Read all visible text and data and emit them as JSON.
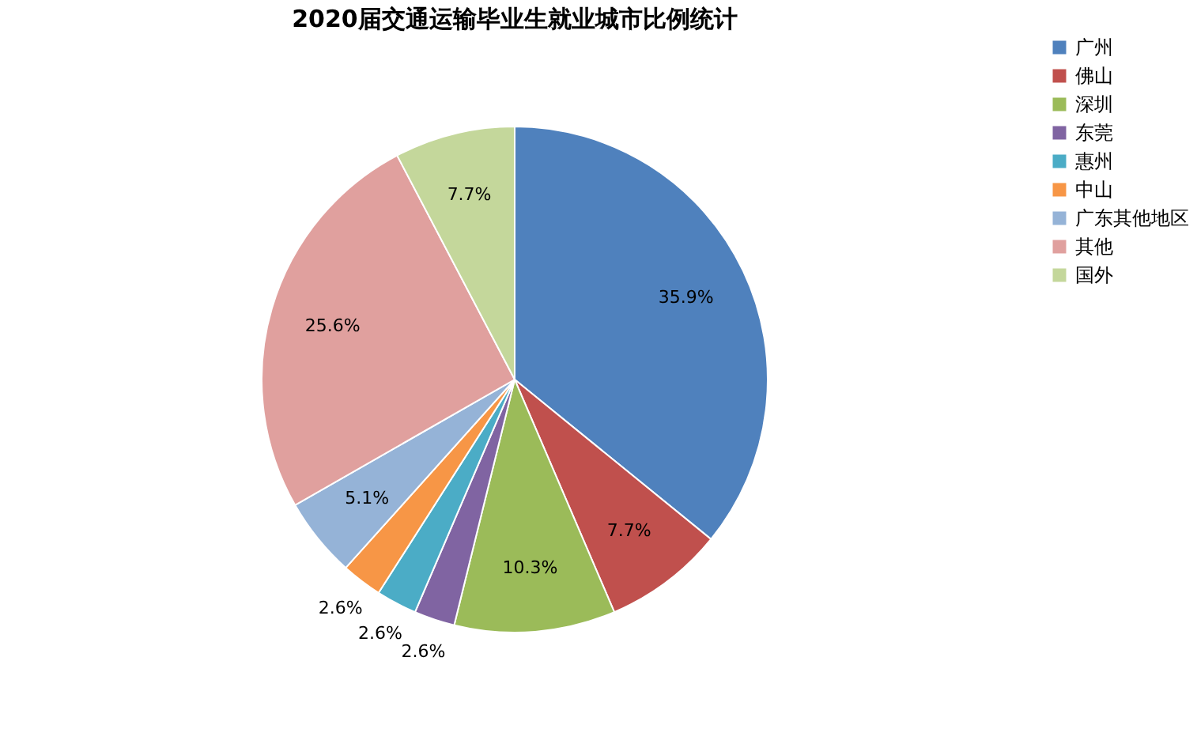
{
  "chart_data": {
    "type": "pie",
    "title": "2020届交通运输毕业生就业城市比例统计",
    "categories": [
      "广州",
      "佛山",
      "深圳",
      "东莞",
      "惠州",
      "中山",
      "广东其他地区",
      "其他",
      "国外"
    ],
    "values": [
      35.9,
      7.7,
      10.3,
      2.6,
      2.6,
      2.6,
      5.1,
      25.6,
      7.7
    ],
    "value_labels": [
      "35.9%",
      "7.7%",
      "10.3%",
      "2.6%",
      "2.6%",
      "2.6%",
      "5.1%",
      "25.6%",
      "7.7%"
    ],
    "colors": [
      "#4f81bd",
      "#c0504d",
      "#9bbb59",
      "#8064a2",
      "#4bacc6",
      "#f79646",
      "#95b3d7",
      "#e0a09e",
      "#c4d79b"
    ],
    "legend": "right"
  }
}
